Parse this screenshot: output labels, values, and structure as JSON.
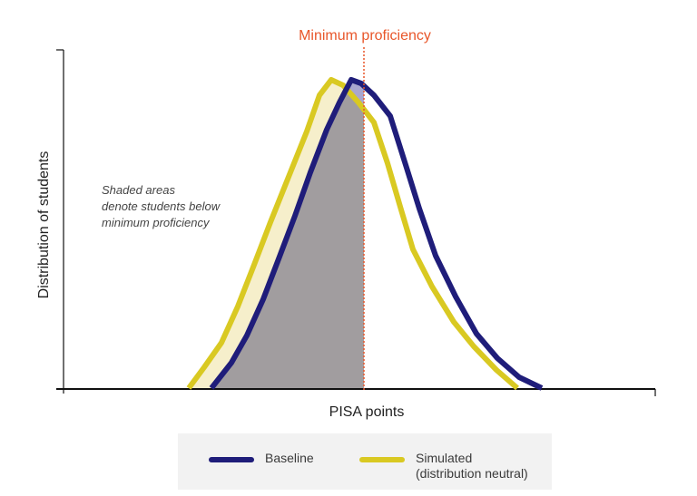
{
  "chart_data": {
    "type": "area",
    "title": "",
    "xlabel": "PISA points",
    "ylabel": "Distribution of students",
    "grid": false,
    "legend_position": "bottom",
    "threshold": {
      "label": "Minimum proficiency",
      "x": 401,
      "color": "#e8562a",
      "style": "dotted"
    },
    "annotation": {
      "lines": [
        "Shaded areas",
        "denote students below",
        "minimum proficiency"
      ]
    },
    "series": [
      {
        "name": "Baseline",
        "color": "#1f1d7a",
        "shade_color": "#a19d9f",
        "points": [
          [
            233,
            428
          ],
          [
            255,
            400
          ],
          [
            272,
            370
          ],
          [
            290,
            330
          ],
          [
            308,
            283
          ],
          [
            325,
            238
          ],
          [
            342,
            190
          ],
          [
            360,
            143
          ],
          [
            374,
            113
          ],
          [
            387,
            88
          ],
          [
            398,
            92
          ],
          [
            412,
            105
          ],
          [
            430,
            128
          ],
          [
            448,
            185
          ],
          [
            462,
            230
          ],
          [
            480,
            282
          ],
          [
            502,
            327
          ],
          [
            525,
            368
          ],
          [
            548,
            395
          ],
          [
            572,
            416
          ],
          [
            597,
            428
          ]
        ]
      },
      {
        "name": "Simulated",
        "sublabel": "(distribution neutral)",
        "color": "#d9c922",
        "shade_color": "#f6efcb",
        "points": [
          [
            208,
            428
          ],
          [
            225,
            405
          ],
          [
            244,
            378
          ],
          [
            262,
            338
          ],
          [
            280,
            292
          ],
          [
            298,
            245
          ],
          [
            318,
            195
          ],
          [
            338,
            145
          ],
          [
            352,
            105
          ],
          [
            365,
            88
          ],
          [
            378,
            94
          ],
          [
            395,
            113
          ],
          [
            412,
            135
          ],
          [
            427,
            180
          ],
          [
            441,
            228
          ],
          [
            455,
            275
          ],
          [
            476,
            316
          ],
          [
            500,
            355
          ],
          [
            522,
            382
          ],
          [
            547,
            408
          ],
          [
            570,
            428
          ]
        ]
      }
    ],
    "axis": {
      "x_range": [
        70,
        722
      ],
      "y_baseline": 428,
      "y_top": 55
    }
  },
  "legend": {
    "items": [
      {
        "label": "Baseline",
        "sublabel": "",
        "color": "#1f1d7a"
      },
      {
        "label": "Simulated",
        "sublabel": "(distribution neutral)",
        "color": "#d9c922"
      }
    ]
  }
}
